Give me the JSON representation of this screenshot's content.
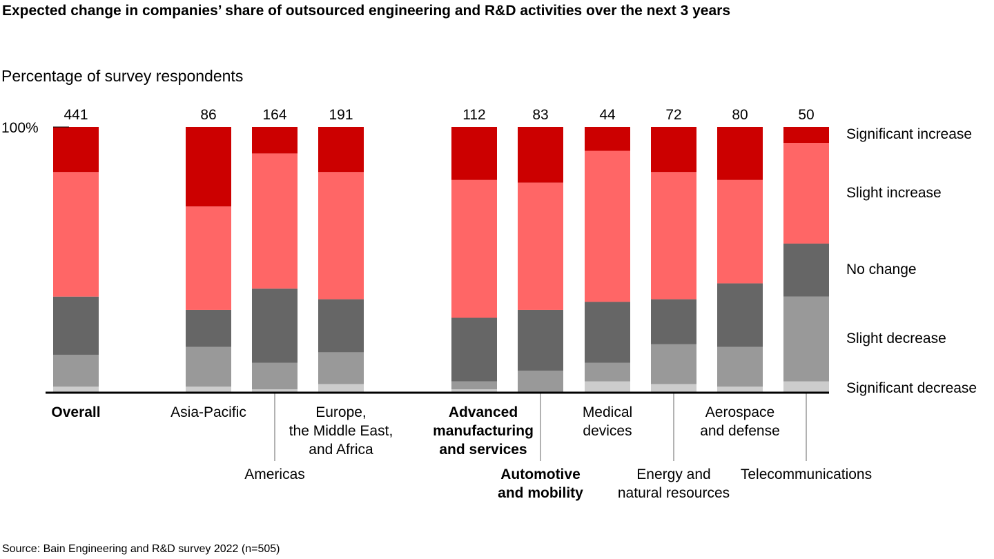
{
  "title": "Expected change in companies’ share of outsourced engineering and R&D activities over the next 3 years",
  "subtitle": "Percentage of survey respondents",
  "source": "Source: Bain Engineering and R&D survey 2022 (n=505)",
  "chart_data": {
    "type": "bar",
    "stacked": true,
    "percent_stacked": true,
    "ylim": [
      0,
      100
    ],
    "y_tick_label": "100%",
    "categories": [
      {
        "label": [
          "Overall"
        ],
        "bold": true,
        "n": "441"
      },
      {
        "label": [
          "Asia-Pacific"
        ],
        "bold": false,
        "n": "86"
      },
      {
        "label": [
          "Americas"
        ],
        "bold": false,
        "n": "164"
      },
      {
        "label": [
          "Europe,",
          "the Middle East,",
          "and Africa"
        ],
        "bold": false,
        "n": "191"
      },
      {
        "label": [
          "Advanced",
          "manufacturing",
          "and services"
        ],
        "bold": true,
        "n": "112"
      },
      {
        "label": [
          "Automotive",
          "and mobility"
        ],
        "bold": true,
        "n": "83"
      },
      {
        "label": [
          "Medical",
          "devices"
        ],
        "bold": false,
        "n": "44"
      },
      {
        "label": [
          "Energy and",
          "natural resources"
        ],
        "bold": false,
        "n": "72"
      },
      {
        "label": [
          "Aerospace",
          "and defense"
        ],
        "bold": false,
        "n": "80"
      },
      {
        "label": [
          "Telecommunications"
        ],
        "bold": false,
        "n": "50"
      }
    ],
    "series": [
      {
        "name": "Significant decrease",
        "color": "#cccccc",
        "values": [
          2,
          2,
          1,
          3,
          1,
          0,
          4,
          3,
          2,
          4
        ]
      },
      {
        "name": "Slight decrease",
        "color": "#999999",
        "values": [
          12,
          15,
          10,
          12,
          3,
          8,
          7,
          15,
          15,
          32
        ]
      },
      {
        "name": "No change",
        "color": "#666666",
        "values": [
          22,
          14,
          28,
          20,
          24,
          23,
          23,
          17,
          24,
          20
        ]
      },
      {
        "name": "Slight increase",
        "color": "#ff6666",
        "values": [
          47,
          39,
          51,
          48,
          52,
          48,
          57,
          48,
          39,
          38
        ]
      },
      {
        "name": "Significant increase",
        "color": "#cc0000",
        "values": [
          17,
          30,
          10,
          17,
          20,
          21,
          9,
          17,
          20,
          6
        ]
      }
    ],
    "legend": "right"
  }
}
